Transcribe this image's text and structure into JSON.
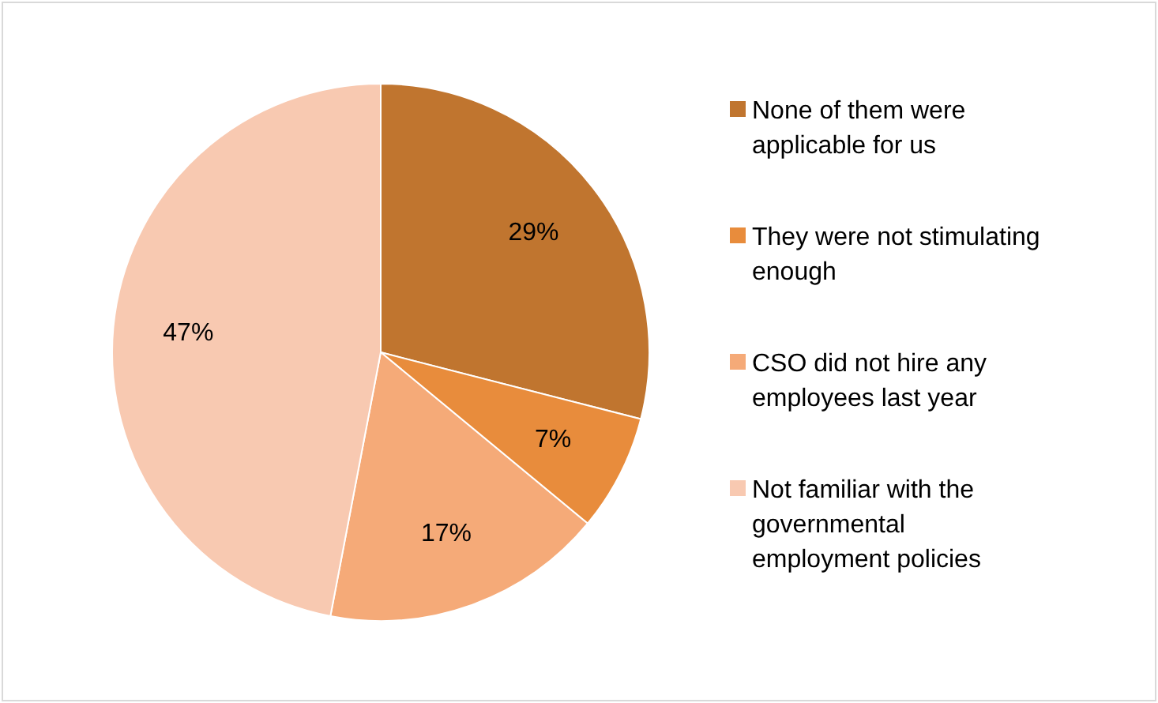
{
  "chart_data": {
    "type": "pie",
    "categories": [
      "None of them were applicable  for us",
      "They were not stimulating enough",
      "CSO did not hire any employees last year",
      "Not familiar with the governmental employment policies"
    ],
    "values": [
      29,
      7,
      17,
      47
    ],
    "value_labels": [
      "29%",
      "7%",
      "17%",
      "47%"
    ],
    "colors": [
      "#c0752f",
      "#e88c3c",
      "#f5aa78",
      "#f8c9b1"
    ],
    "legend": "right"
  }
}
